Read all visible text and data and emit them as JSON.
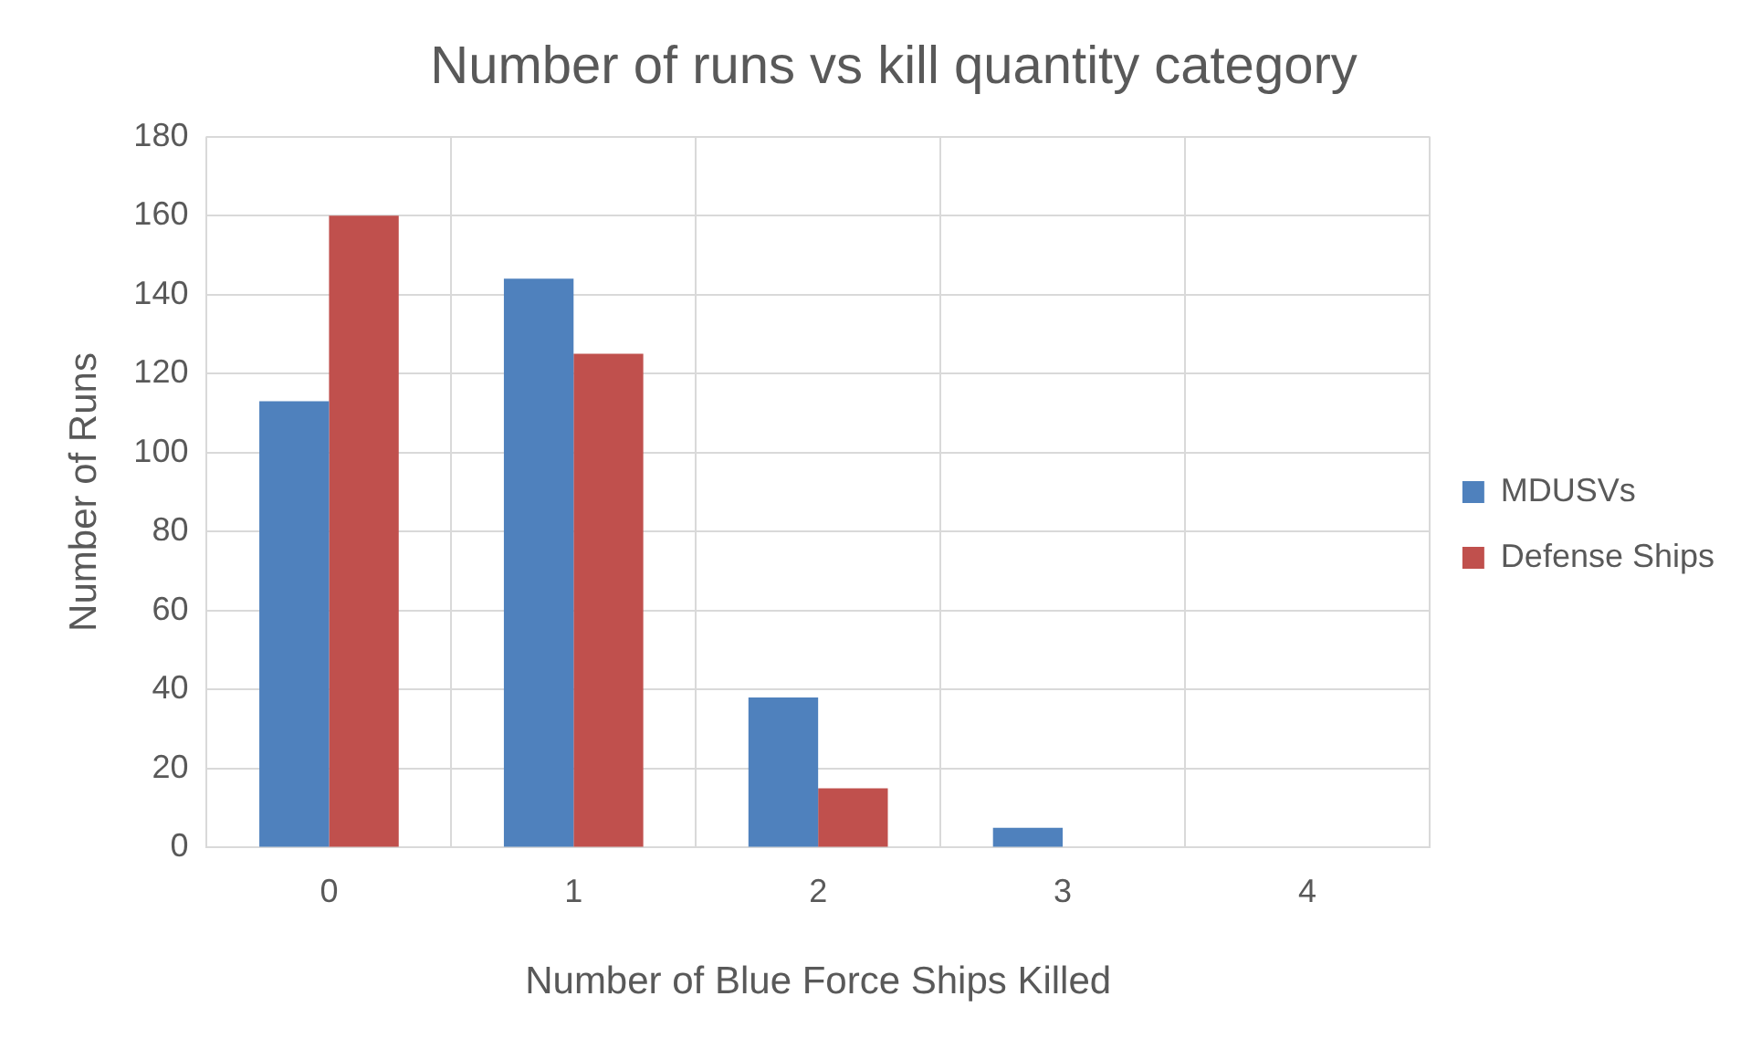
{
  "chart_data": {
    "type": "bar",
    "title": "Number of runs vs kill quantity category",
    "xlabel": "Number of Blue Force Ships Killed",
    "ylabel": "Number of Runs",
    "categories": [
      "0",
      "1",
      "2",
      "3",
      "4"
    ],
    "series": [
      {
        "name": "MDUSVs",
        "color": "#4f81bd",
        "values": [
          113,
          144,
          38,
          5,
          0
        ]
      },
      {
        "name": "Defense Ships",
        "color": "#c0504d",
        "values": [
          160,
          125,
          15,
          0,
          0
        ]
      }
    ],
    "ylim": [
      0,
      180
    ],
    "yticks": [
      0,
      20,
      40,
      60,
      80,
      100,
      120,
      140,
      160,
      180
    ],
    "grid": true,
    "legend": "right"
  }
}
